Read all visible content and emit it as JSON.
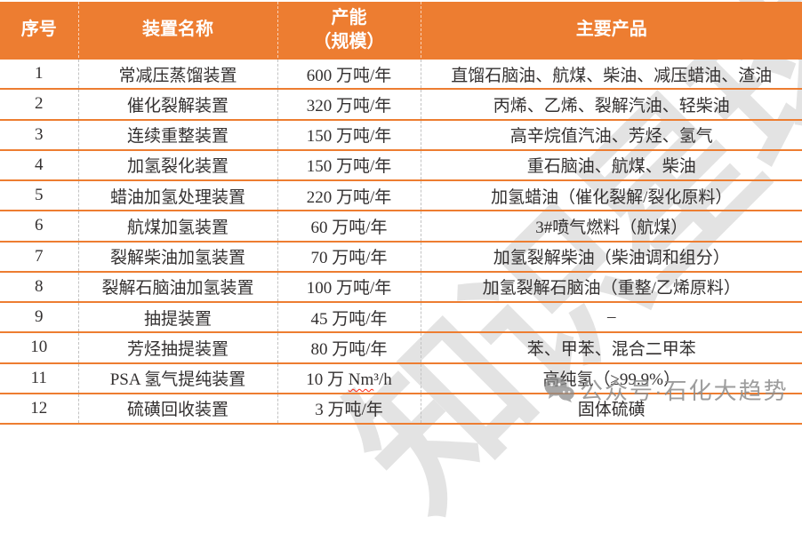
{
  "table": {
    "headers": {
      "index": "序号",
      "name": "装置名称",
      "capacity_line1": "产能",
      "capacity_line2": "（规模）",
      "products": "主要产品"
    },
    "rows": [
      {
        "index": "1",
        "name": "常减压蒸馏装置",
        "capacity": "600 万吨/年",
        "products": "直馏石脑油、航煤、柴油、减压蜡油、渣油"
      },
      {
        "index": "2",
        "name": "催化裂解装置",
        "capacity": "320 万吨/年",
        "products": "丙烯、乙烯、裂解汽油、轻柴油"
      },
      {
        "index": "3",
        "name": "连续重整装置",
        "capacity": "150 万吨/年",
        "products": "高辛烷值汽油、芳烃、氢气"
      },
      {
        "index": "4",
        "name": "加氢裂化装置",
        "capacity": "150 万吨/年",
        "products": "重石脑油、航煤、柴油"
      },
      {
        "index": "5",
        "name": "蜡油加氢处理装置",
        "capacity": "220 万吨/年",
        "products": "加氢蜡油（催化裂解/裂化原料）"
      },
      {
        "index": "6",
        "name": "航煤加氢装置",
        "capacity": "60 万吨/年",
        "products": "3#喷气燃料（航煤）"
      },
      {
        "index": "7",
        "name": "裂解柴油加氢装置",
        "capacity": "70 万吨/年",
        "products": "加氢裂解柴油（柴油调和组分）"
      },
      {
        "index": "8",
        "name": "裂解石脑油加氢装置",
        "capacity": "100 万吨/年",
        "products": "加氢裂解石脑油（重整/乙烯原料）"
      },
      {
        "index": "9",
        "name": "抽提装置",
        "capacity": "45 万吨/年",
        "products": "–"
      },
      {
        "index": "10",
        "name": "芳烃抽提装置",
        "capacity": "80 万吨/年",
        "products": "苯、甲苯、混合二甲苯"
      },
      {
        "index": "11",
        "name": "PSA 氢气提纯装置",
        "capacity": "10 万 Nm³/h",
        "capacity_wavy": "Nm",
        "products": "高纯氢（≥99.9%）"
      },
      {
        "index": "12",
        "name": "硫磺回收装置",
        "capacity": "3 万吨/年",
        "products": "固体硫磺"
      }
    ]
  },
  "watermarks": {
    "diagonal_text": "知识星球",
    "wechat_label": "公众号·石化大趋势",
    "wechat_icon": "wechat-icon"
  },
  "colors": {
    "accent_orange": "#ED7D31",
    "header_text": "#FFFFFF",
    "body_text": "#333030",
    "grid_dash": "#C3C3C3",
    "watermark_gray": "#8C8C8C",
    "spellcheck_red": "#FF2A1A"
  }
}
